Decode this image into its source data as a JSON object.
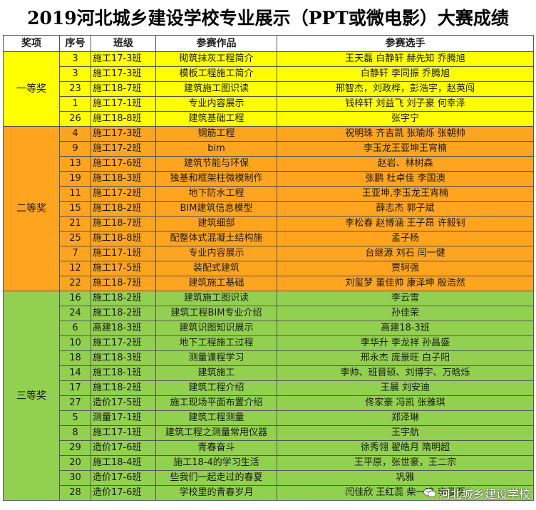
{
  "title": "2019河北城乡建设学校专业展示（PPT或微电影）大赛成绩",
  "headers": [
    "奖项",
    "序号",
    "班级",
    "参赛作品",
    "参赛选手"
  ],
  "groups": [
    {
      "award": "一等奖",
      "color": "#ffff00",
      "rows": [
        {
          "no": "3",
          "cls": "施工17-3班",
          "work": "砌筑抹灰工程简介",
          "players": "王天磊  白静轩  赫先知  乔腾旭"
        },
        {
          "no": "3",
          "cls": "施工17-3班",
          "work": "模板工程施工简介",
          "players": "白静轩  李同振  乔腾旭"
        },
        {
          "no": "23",
          "cls": "施工18-7班",
          "work": "建筑施工图识读",
          "players": "邢智杰，刘政桦，彭浩宇，赵英闯"
        },
        {
          "no": "1",
          "cls": "施工17-1班",
          "work": "专业内容展示",
          "players": "钱梓轩  刘益飞  刘子豪  何幸泽"
        },
        {
          "no": "26",
          "cls": "施工18-8班",
          "work": "建筑基础工程",
          "players": "张宇宁"
        }
      ]
    },
    {
      "award": "二等奖",
      "color": "#ffa41f",
      "rows": [
        {
          "no": "4",
          "cls": "施工17-3班",
          "work": "钢筋工程",
          "players": "祝明珠  齐吉凯  张瑜烁  张朝帅"
        },
        {
          "no": "9",
          "cls": "施工17-2班",
          "work": "bim",
          "players": "李玉龙王亚坤王宵楠"
        },
        {
          "no": "13",
          "cls": "施工17-6班",
          "work": "建筑节能与环保",
          "players": "赵岩、林树森"
        },
        {
          "no": "19",
          "cls": "施工18-3班",
          "work": "独基和框架柱微模制作",
          "players": "张鹏  杜卓佳  李国澳"
        },
        {
          "no": "11",
          "cls": "施工17-2班",
          "work": "地下防水工程",
          "players": "王亚坤,李玉龙王宵楠"
        },
        {
          "no": "15",
          "cls": "施工18-2班",
          "work": "BIM建筑信息模型",
          "players": "薛志杰  郭子斌"
        },
        {
          "no": "21",
          "cls": "施工18-7班",
          "work": "建筑细部",
          "players": "李松春  赵博涵  王子昂  许毅钊"
        },
        {
          "no": "25",
          "cls": "施工18-8班",
          "work": "配整体式混凝土结构施",
          "players": "孟子杨"
        },
        {
          "no": "7",
          "cls": "施工17-1班",
          "work": "专业内容展示",
          "players": "台继源  刘石  闫一健"
        },
        {
          "no": "12",
          "cls": "施工17-5班",
          "work": "装配式建筑",
          "players": "贾轲强"
        },
        {
          "no": "22",
          "cls": "施工18-7班",
          "work": "建筑施工基础",
          "players": "刘玺梦  董佳帅  康泽坤  殷浩然"
        }
      ]
    },
    {
      "award": "三等奖",
      "color": "#92d050",
      "rows": [
        {
          "no": "16",
          "cls": "施工18-2班",
          "work": "建筑施工图识读",
          "players": "李云雪"
        },
        {
          "no": "24",
          "cls": "施工18-2班",
          "work": "建筑工程BIM专业介绍",
          "players": "孙佳荣"
        },
        {
          "no": "6",
          "cls": "高建18-3班",
          "work": "建筑识图知识展示",
          "players": "高建18-3班"
        },
        {
          "no": "10",
          "cls": "施工17-2班",
          "work": "地下工程施工过程",
          "players": "李华升  李龙祥  孙昌盛"
        },
        {
          "no": "18",
          "cls": "施工18-3班",
          "work": "测量课程学习",
          "players": "邢永杰  庞景旺  白子阳"
        },
        {
          "no": "14",
          "cls": "施工18-1班",
          "work": "建筑施工",
          "players": "李帅、班晋硕、刘博宇、万晗烁"
        },
        {
          "no": "17",
          "cls": "施工18-2班",
          "work": "建筑工程介绍",
          "players": "王晨  刘安迪"
        },
        {
          "no": "27",
          "cls": "造价17-5班",
          "work": "施工现场平面布置介绍",
          "players": "佟家豪  冯凯  张雅琪"
        },
        {
          "no": "5",
          "cls": "测量17-1班",
          "work": "建筑工程测量",
          "players": "郑泽琳"
        },
        {
          "no": "8",
          "cls": "施工17-1班",
          "work": "建筑工程之测量常用仪器",
          "players": "王宇航"
        },
        {
          "no": "29",
          "cls": "造价17-6班",
          "work": "青春奋斗",
          "players": "徐秀翎  翟皓月  隋明超"
        },
        {
          "no": "20",
          "cls": "施工18-4班",
          "work": "施工18-4的学习生活",
          "players": "王平原，张世豪，王二宗"
        },
        {
          "no": "30",
          "cls": "造价17-6班",
          "work": "些我们一起走过的春夏",
          "players": "巩雅"
        },
        {
          "no": "28",
          "cls": "造价17-6班",
          "work": "学校里的青春岁月",
          "players": "闫佳欣  王红蕊  柴一鸣  李俊明"
        }
      ]
    }
  ],
  "watermark": {
    "text": "河北城乡建设学校",
    "icon": "wechat-icon"
  }
}
